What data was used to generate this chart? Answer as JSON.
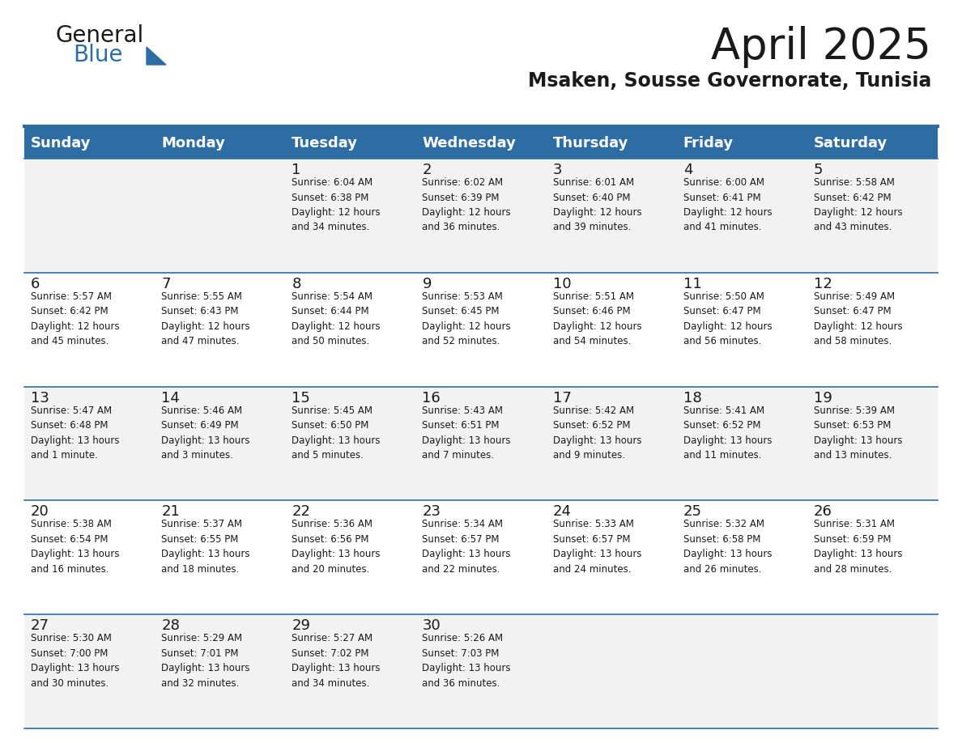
{
  "title": "April 2025",
  "subtitle": "Msaken, Sousse Governorate, Tunisia",
  "header_bg_color": "#2E6DA4",
  "header_text_color": "#FFFFFF",
  "cell_bg_color_light": "#F2F2F2",
  "cell_bg_color_white": "#FFFFFF",
  "text_color": "#222222",
  "line_color": "#2E6DA4",
  "days_of_week": [
    "Sunday",
    "Monday",
    "Tuesday",
    "Wednesday",
    "Thursday",
    "Friday",
    "Saturday"
  ],
  "weeks": [
    [
      {
        "day": "",
        "text": ""
      },
      {
        "day": "",
        "text": ""
      },
      {
        "day": "1",
        "text": "Sunrise: 6:04 AM\nSunset: 6:38 PM\nDaylight: 12 hours\nand 34 minutes."
      },
      {
        "day": "2",
        "text": "Sunrise: 6:02 AM\nSunset: 6:39 PM\nDaylight: 12 hours\nand 36 minutes."
      },
      {
        "day": "3",
        "text": "Sunrise: 6:01 AM\nSunset: 6:40 PM\nDaylight: 12 hours\nand 39 minutes."
      },
      {
        "day": "4",
        "text": "Sunrise: 6:00 AM\nSunset: 6:41 PM\nDaylight: 12 hours\nand 41 minutes."
      },
      {
        "day": "5",
        "text": "Sunrise: 5:58 AM\nSunset: 6:42 PM\nDaylight: 12 hours\nand 43 minutes."
      }
    ],
    [
      {
        "day": "6",
        "text": "Sunrise: 5:57 AM\nSunset: 6:42 PM\nDaylight: 12 hours\nand 45 minutes."
      },
      {
        "day": "7",
        "text": "Sunrise: 5:55 AM\nSunset: 6:43 PM\nDaylight: 12 hours\nand 47 minutes."
      },
      {
        "day": "8",
        "text": "Sunrise: 5:54 AM\nSunset: 6:44 PM\nDaylight: 12 hours\nand 50 minutes."
      },
      {
        "day": "9",
        "text": "Sunrise: 5:53 AM\nSunset: 6:45 PM\nDaylight: 12 hours\nand 52 minutes."
      },
      {
        "day": "10",
        "text": "Sunrise: 5:51 AM\nSunset: 6:46 PM\nDaylight: 12 hours\nand 54 minutes."
      },
      {
        "day": "11",
        "text": "Sunrise: 5:50 AM\nSunset: 6:47 PM\nDaylight: 12 hours\nand 56 minutes."
      },
      {
        "day": "12",
        "text": "Sunrise: 5:49 AM\nSunset: 6:47 PM\nDaylight: 12 hours\nand 58 minutes."
      }
    ],
    [
      {
        "day": "13",
        "text": "Sunrise: 5:47 AM\nSunset: 6:48 PM\nDaylight: 13 hours\nand 1 minute."
      },
      {
        "day": "14",
        "text": "Sunrise: 5:46 AM\nSunset: 6:49 PM\nDaylight: 13 hours\nand 3 minutes."
      },
      {
        "day": "15",
        "text": "Sunrise: 5:45 AM\nSunset: 6:50 PM\nDaylight: 13 hours\nand 5 minutes."
      },
      {
        "day": "16",
        "text": "Sunrise: 5:43 AM\nSunset: 6:51 PM\nDaylight: 13 hours\nand 7 minutes."
      },
      {
        "day": "17",
        "text": "Sunrise: 5:42 AM\nSunset: 6:52 PM\nDaylight: 13 hours\nand 9 minutes."
      },
      {
        "day": "18",
        "text": "Sunrise: 5:41 AM\nSunset: 6:52 PM\nDaylight: 13 hours\nand 11 minutes."
      },
      {
        "day": "19",
        "text": "Sunrise: 5:39 AM\nSunset: 6:53 PM\nDaylight: 13 hours\nand 13 minutes."
      }
    ],
    [
      {
        "day": "20",
        "text": "Sunrise: 5:38 AM\nSunset: 6:54 PM\nDaylight: 13 hours\nand 16 minutes."
      },
      {
        "day": "21",
        "text": "Sunrise: 5:37 AM\nSunset: 6:55 PM\nDaylight: 13 hours\nand 18 minutes."
      },
      {
        "day": "22",
        "text": "Sunrise: 5:36 AM\nSunset: 6:56 PM\nDaylight: 13 hours\nand 20 minutes."
      },
      {
        "day": "23",
        "text": "Sunrise: 5:34 AM\nSunset: 6:57 PM\nDaylight: 13 hours\nand 22 minutes."
      },
      {
        "day": "24",
        "text": "Sunrise: 5:33 AM\nSunset: 6:57 PM\nDaylight: 13 hours\nand 24 minutes."
      },
      {
        "day": "25",
        "text": "Sunrise: 5:32 AM\nSunset: 6:58 PM\nDaylight: 13 hours\nand 26 minutes."
      },
      {
        "day": "26",
        "text": "Sunrise: 5:31 AM\nSunset: 6:59 PM\nDaylight: 13 hours\nand 28 minutes."
      }
    ],
    [
      {
        "day": "27",
        "text": "Sunrise: 5:30 AM\nSunset: 7:00 PM\nDaylight: 13 hours\nand 30 minutes."
      },
      {
        "day": "28",
        "text": "Sunrise: 5:29 AM\nSunset: 7:01 PM\nDaylight: 13 hours\nand 32 minutes."
      },
      {
        "day": "29",
        "text": "Sunrise: 5:27 AM\nSunset: 7:02 PM\nDaylight: 13 hours\nand 34 minutes."
      },
      {
        "day": "30",
        "text": "Sunrise: 5:26 AM\nSunset: 7:03 PM\nDaylight: 13 hours\nand 36 minutes."
      },
      {
        "day": "",
        "text": ""
      },
      {
        "day": "",
        "text": ""
      },
      {
        "day": "",
        "text": ""
      }
    ]
  ],
  "logo_text_general": "General",
  "logo_text_blue": "Blue",
  "logo_color_general": "#1a1a1a",
  "logo_color_blue": "#2E6DA4"
}
